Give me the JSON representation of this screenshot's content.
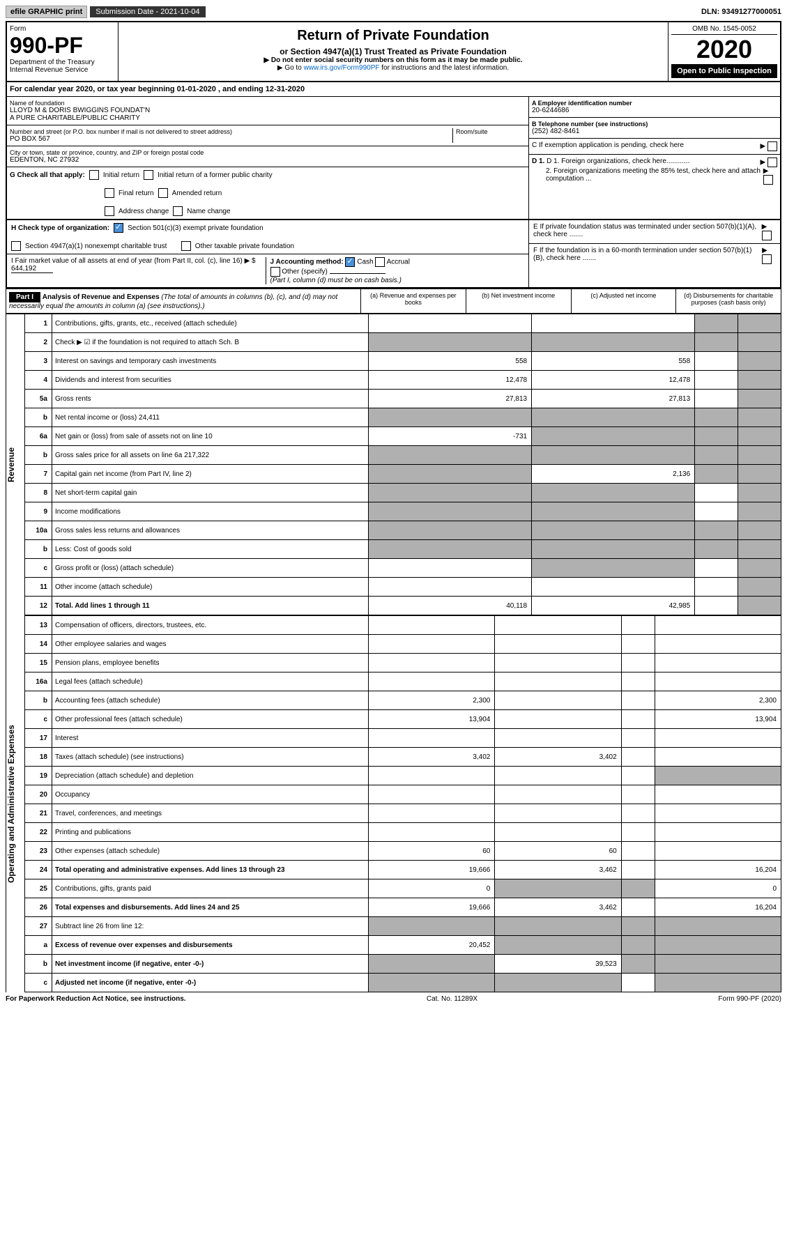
{
  "top": {
    "efile": "efile GRAPHIC print",
    "submission": "Submission Date - 2021-10-04",
    "dln": "DLN: 93491277000051"
  },
  "header": {
    "form": "Form",
    "form_no": "990-PF",
    "dept": "Department of the Treasury",
    "irs": "Internal Revenue Service",
    "title": "Return of Private Foundation",
    "subtitle": "or Section 4947(a)(1) Trust Treated as Private Foundation",
    "instr1": "▶ Do not enter social security numbers on this form as it may be made public.",
    "instr2_pre": "▶ Go to ",
    "instr2_link": "www.irs.gov/Form990PF",
    "instr2_post": " for instructions and the latest information.",
    "omb": "OMB No. 1545-0052",
    "year": "2020",
    "inspect": "Open to Public Inspection"
  },
  "calyear": "For calendar year 2020, or tax year beginning 01-01-2020          , and ending 12-31-2020",
  "entity": {
    "name_label": "Name of foundation",
    "name1": "LLOYD M & DORIS BWIGGINS FOUNDAT'N",
    "name2": "A PURE CHARITABLE/PUBLIC CHARITY",
    "addr_label": "Number and street (or P.O. box number if mail is not delivered to street address)",
    "room_label": "Room/suite",
    "addr": "PO BOX 567",
    "city_label": "City or town, state or province, country, and ZIP or foreign postal code",
    "city": "EDENTON, NC  27932",
    "ein_label": "A Employer identification number",
    "ein": "20-6244686",
    "tel_label": "B Telephone number (see instructions)",
    "tel": "(252) 482-8461",
    "c_label": "C If exemption application is pending, check here",
    "d1": "D 1. Foreign organizations, check here............",
    "d2": "2. Foreign organizations meeting the 85% test, check here and attach computation ...",
    "e_label": "E  If private foundation status was terminated under section 507(b)(1)(A), check here .......",
    "f_label": "F  If the foundation is in a 60-month termination under section 507(b)(1)(B), check here ......."
  },
  "g": {
    "label": "G Check all that apply:",
    "initial": "Initial return",
    "initial_former": "Initial return of a former public charity",
    "final": "Final return",
    "amended": "Amended return",
    "addr_change": "Address change",
    "name_change": "Name change"
  },
  "h": {
    "label": "H Check type of organization:",
    "501c3": "Section 501(c)(3) exempt private foundation",
    "4947": "Section 4947(a)(1) nonexempt charitable trust",
    "other_tax": "Other taxable private foundation"
  },
  "i": {
    "label": "I Fair market value of all assets at end of year (from Part II, col. (c), line 16) ▶ $",
    "val": "644,192"
  },
  "j": {
    "label": "J Accounting method:",
    "cash": "Cash",
    "accrual": "Accrual",
    "other": "Other (specify)",
    "note": "(Part I, column (d) must be on cash basis.)"
  },
  "part1": {
    "label": "Part I",
    "title": "Analysis of Revenue and Expenses",
    "title_note": " (The total of amounts in columns (b), (c), and (d) may not necessarily equal the amounts in column (a) (see instructions).)",
    "cols": {
      "a": "(a) Revenue and expenses per books",
      "b": "(b) Net investment income",
      "c": "(c) Adjusted net income",
      "d": "(d) Disbursements for charitable purposes (cash basis only)"
    }
  },
  "sections": {
    "rev": "Revenue",
    "op": "Operating and Administrative Expenses"
  },
  "rows": [
    {
      "n": "1",
      "d": "Contributions, gifts, grants, etc., received (attach schedule)",
      "a": "",
      "b": "",
      "c": "sh",
      "dcol": "sh"
    },
    {
      "n": "2",
      "d": "Check ▶ ☑ if the foundation is not required to attach Sch. B",
      "a": "sh",
      "b": "sh",
      "c": "sh",
      "dcol": "sh"
    },
    {
      "n": "3",
      "d": "Interest on savings and temporary cash investments",
      "a": "558",
      "b": "558",
      "c": "",
      "dcol": "sh"
    },
    {
      "n": "4",
      "d": "Dividends and interest from securities",
      "a": "12,478",
      "b": "12,478",
      "c": "",
      "dcol": "sh"
    },
    {
      "n": "5a",
      "d": "Gross rents",
      "a": "27,813",
      "b": "27,813",
      "c": "",
      "dcol": "sh"
    },
    {
      "n": "b",
      "d": "Net rental income or (loss)                          24,411",
      "a": "sh",
      "b": "sh",
      "c": "sh",
      "dcol": "sh"
    },
    {
      "n": "6a",
      "d": "Net gain or (loss) from sale of assets not on line 10",
      "a": "-731",
      "b": "sh",
      "c": "sh",
      "dcol": "sh"
    },
    {
      "n": "b",
      "d": "Gross sales price for all assets on line 6a          217,322",
      "a": "sh",
      "b": "sh",
      "c": "sh",
      "dcol": "sh"
    },
    {
      "n": "7",
      "d": "Capital gain net income (from Part IV, line 2)",
      "a": "sh",
      "b": "2,136",
      "c": "sh",
      "dcol": "sh"
    },
    {
      "n": "8",
      "d": "Net short-term capital gain",
      "a": "sh",
      "b": "sh",
      "c": "",
      "dcol": "sh"
    },
    {
      "n": "9",
      "d": "Income modifications",
      "a": "sh",
      "b": "sh",
      "c": "",
      "dcol": "sh"
    },
    {
      "n": "10a",
      "d": "Gross sales less returns and allowances",
      "a": "sh",
      "b": "sh",
      "c": "sh",
      "dcol": "sh"
    },
    {
      "n": "b",
      "d": "Less: Cost of goods sold",
      "a": "sh",
      "b": "sh",
      "c": "sh",
      "dcol": "sh"
    },
    {
      "n": "c",
      "d": "Gross profit or (loss) (attach schedule)",
      "a": "",
      "b": "sh",
      "c": "",
      "dcol": "sh"
    },
    {
      "n": "11",
      "d": "Other income (attach schedule)",
      "a": "",
      "b": "",
      "c": "",
      "dcol": "sh"
    },
    {
      "n": "12",
      "d": "Total. Add lines 1 through 11",
      "bold": true,
      "a": "40,118",
      "b": "42,985",
      "c": "",
      "dcol": "sh"
    }
  ],
  "rows_op": [
    {
      "n": "13",
      "d": "Compensation of officers, directors, trustees, etc.",
      "a": "",
      "b": "",
      "c": "",
      "dcol": ""
    },
    {
      "n": "14",
      "d": "Other employee salaries and wages",
      "a": "",
      "b": "",
      "c": "",
      "dcol": ""
    },
    {
      "n": "15",
      "d": "Pension plans, employee benefits",
      "a": "",
      "b": "",
      "c": "",
      "dcol": ""
    },
    {
      "n": "16a",
      "d": "Legal fees (attach schedule)",
      "a": "",
      "b": "",
      "c": "",
      "dcol": ""
    },
    {
      "n": "b",
      "d": "Accounting fees (attach schedule)",
      "a": "2,300",
      "b": "",
      "c": "",
      "dcol": "2,300"
    },
    {
      "n": "c",
      "d": "Other professional fees (attach schedule)",
      "a": "13,904",
      "b": "",
      "c": "",
      "dcol": "13,904"
    },
    {
      "n": "17",
      "d": "Interest",
      "a": "",
      "b": "",
      "c": "",
      "dcol": ""
    },
    {
      "n": "18",
      "d": "Taxes (attach schedule) (see instructions)",
      "a": "3,402",
      "b": "3,402",
      "c": "",
      "dcol": ""
    },
    {
      "n": "19",
      "d": "Depreciation (attach schedule) and depletion",
      "a": "",
      "b": "",
      "c": "",
      "dcol": "sh"
    },
    {
      "n": "20",
      "d": "Occupancy",
      "a": "",
      "b": "",
      "c": "",
      "dcol": ""
    },
    {
      "n": "21",
      "d": "Travel, conferences, and meetings",
      "a": "",
      "b": "",
      "c": "",
      "dcol": ""
    },
    {
      "n": "22",
      "d": "Printing and publications",
      "a": "",
      "b": "",
      "c": "",
      "dcol": ""
    },
    {
      "n": "23",
      "d": "Other expenses (attach schedule)",
      "a": "60",
      "b": "60",
      "c": "",
      "dcol": ""
    },
    {
      "n": "24",
      "d": "Total operating and administrative expenses. Add lines 13 through 23",
      "bold": true,
      "a": "19,666",
      "b": "3,462",
      "c": "",
      "dcol": "16,204"
    },
    {
      "n": "25",
      "d": "Contributions, gifts, grants paid",
      "a": "0",
      "b": "sh",
      "c": "sh",
      "dcol": "0"
    },
    {
      "n": "26",
      "d": "Total expenses and disbursements. Add lines 24 and 25",
      "bold": true,
      "a": "19,666",
      "b": "3,462",
      "c": "",
      "dcol": "16,204"
    },
    {
      "n": "27",
      "d": "Subtract line 26 from line 12:",
      "a": "sh",
      "b": "sh",
      "c": "sh",
      "dcol": "sh"
    },
    {
      "n": "a",
      "d": "Excess of revenue over expenses and disbursements",
      "bold": true,
      "a": "20,452",
      "b": "sh",
      "c": "sh",
      "dcol": "sh"
    },
    {
      "n": "b",
      "d": "Net investment income (if negative, enter -0-)",
      "bold": true,
      "a": "sh",
      "b": "39,523",
      "c": "sh",
      "dcol": "sh"
    },
    {
      "n": "c",
      "d": "Adjusted net income (if negative, enter -0-)",
      "bold": true,
      "a": "sh",
      "b": "sh",
      "c": "",
      "dcol": "sh"
    }
  ],
  "footer": {
    "pra": "For Paperwork Reduction Act Notice, see instructions.",
    "cat": "Cat. No. 11289X",
    "form": "Form 990-PF (2020)"
  }
}
